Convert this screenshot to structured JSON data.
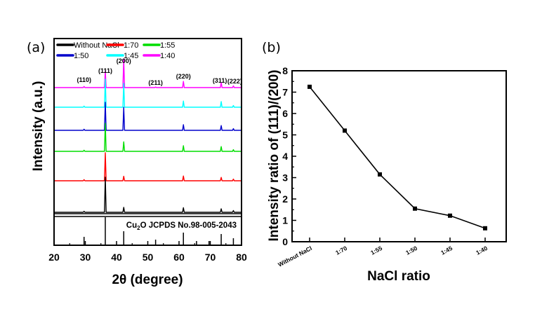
{
  "chart_data": [
    {
      "panel_label": "(a)",
      "type": "line",
      "xlabel": "2θ (degree)",
      "ylabel": "Intensity (a.u.)",
      "xlim": [
        20,
        80
      ],
      "xticks": [
        "20",
        "30",
        "40",
        "50",
        "60",
        "70",
        "80"
      ],
      "legend": [
        "Without NaCl",
        "1:70",
        "1:55",
        "1:50",
        "1:45",
        "1:40"
      ],
      "legend_position": "top-left",
      "series": [
        {
          "name": "1:40",
          "color": "#ff00ff",
          "peaks": [
            [
              29.6,
              0.04
            ],
            [
              36.4,
              0.6
            ],
            [
              42.3,
              1.0
            ],
            [
              52.5,
              0.02
            ],
            [
              61.4,
              0.22
            ],
            [
              73.5,
              0.18
            ],
            [
              77.4,
              0.06
            ]
          ]
        },
        {
          "name": "1:45",
          "color": "#00ffff",
          "peaks": [
            [
              29.6,
              0.04
            ],
            [
              36.4,
              1.0
            ],
            [
              42.3,
              0.85
            ],
            [
              61.4,
              0.22
            ],
            [
              73.5,
              0.2
            ],
            [
              77.4,
              0.06
            ]
          ]
        },
        {
          "name": "1:50",
          "color": "#0000cc",
          "peaks": [
            [
              29.6,
              0.04
            ],
            [
              36.4,
              1.0
            ],
            [
              42.3,
              0.82
            ],
            [
              61.4,
              0.2
            ],
            [
              73.5,
              0.17
            ],
            [
              77.4,
              0.06
            ]
          ]
        },
        {
          "name": "1:55",
          "color": "#00dd00",
          "peaks": [
            [
              29.6,
              0.04
            ],
            [
              36.4,
              1.0
            ],
            [
              42.3,
              0.34
            ],
            [
              61.4,
              0.2
            ],
            [
              73.5,
              0.17
            ],
            [
              77.4,
              0.06
            ]
          ]
        },
        {
          "name": "1:70",
          "color": "#ff0000",
          "peaks": [
            [
              29.6,
              0.04
            ],
            [
              36.4,
              1.0
            ],
            [
              42.3,
              0.16
            ],
            [
              61.4,
              0.17
            ],
            [
              73.5,
              0.12
            ],
            [
              77.4,
              0.06
            ]
          ]
        },
        {
          "name": "Without NaCl",
          "color": "#000000",
          "peaks": [
            [
              29.6,
              0.03
            ],
            [
              36.4,
              1.0
            ],
            [
              42.3,
              0.14
            ],
            [
              61.4,
              0.13
            ],
            [
              73.5,
              0.1
            ],
            [
              77.4,
              0.05
            ]
          ]
        }
      ],
      "reference": {
        "label_prefix": "Cu",
        "label_sub": "2",
        "label_suffix": "O JCPDS No.98-005-2043",
        "lines": [
          [
            29.6,
            0.3
          ],
          [
            36.4,
            1.0
          ],
          [
            42.3,
            0.5
          ],
          [
            52.5,
            0.2
          ],
          [
            61.4,
            0.45
          ],
          [
            65.6,
            0.15
          ],
          [
            69.6,
            0.15
          ],
          [
            73.5,
            0.4
          ],
          [
            77.4,
            0.25
          ]
        ]
      },
      "annotations": [
        {
          "text": "(110)",
          "x": 29.6
        },
        {
          "text": "(111)",
          "x": 36.4
        },
        {
          "text": "(200)",
          "x": 42.3
        },
        {
          "text": "(211)",
          "x": 52.5
        },
        {
          "text": "(220)",
          "x": 61.4
        },
        {
          "text": "(311)",
          "x": 73.5
        },
        {
          "text": "(222)",
          "x": 77.4
        }
      ]
    },
    {
      "panel_label": "(b)",
      "type": "line",
      "xlabel": "NaCl ratio",
      "ylabel": "Intensity ratio of (111)/(200)",
      "categories": [
        "Without NaCl",
        "1:70",
        "1:55",
        "1:50",
        "1:45",
        "1:40"
      ],
      "values": [
        7.25,
        5.2,
        3.15,
        1.55,
        1.22,
        0.63
      ],
      "ylim": [
        0,
        8
      ],
      "yticks": [
        "0",
        "1",
        "2",
        "3",
        "4",
        "5",
        "6",
        "7",
        "8"
      ],
      "color": "#000000",
      "marker": "square"
    }
  ]
}
